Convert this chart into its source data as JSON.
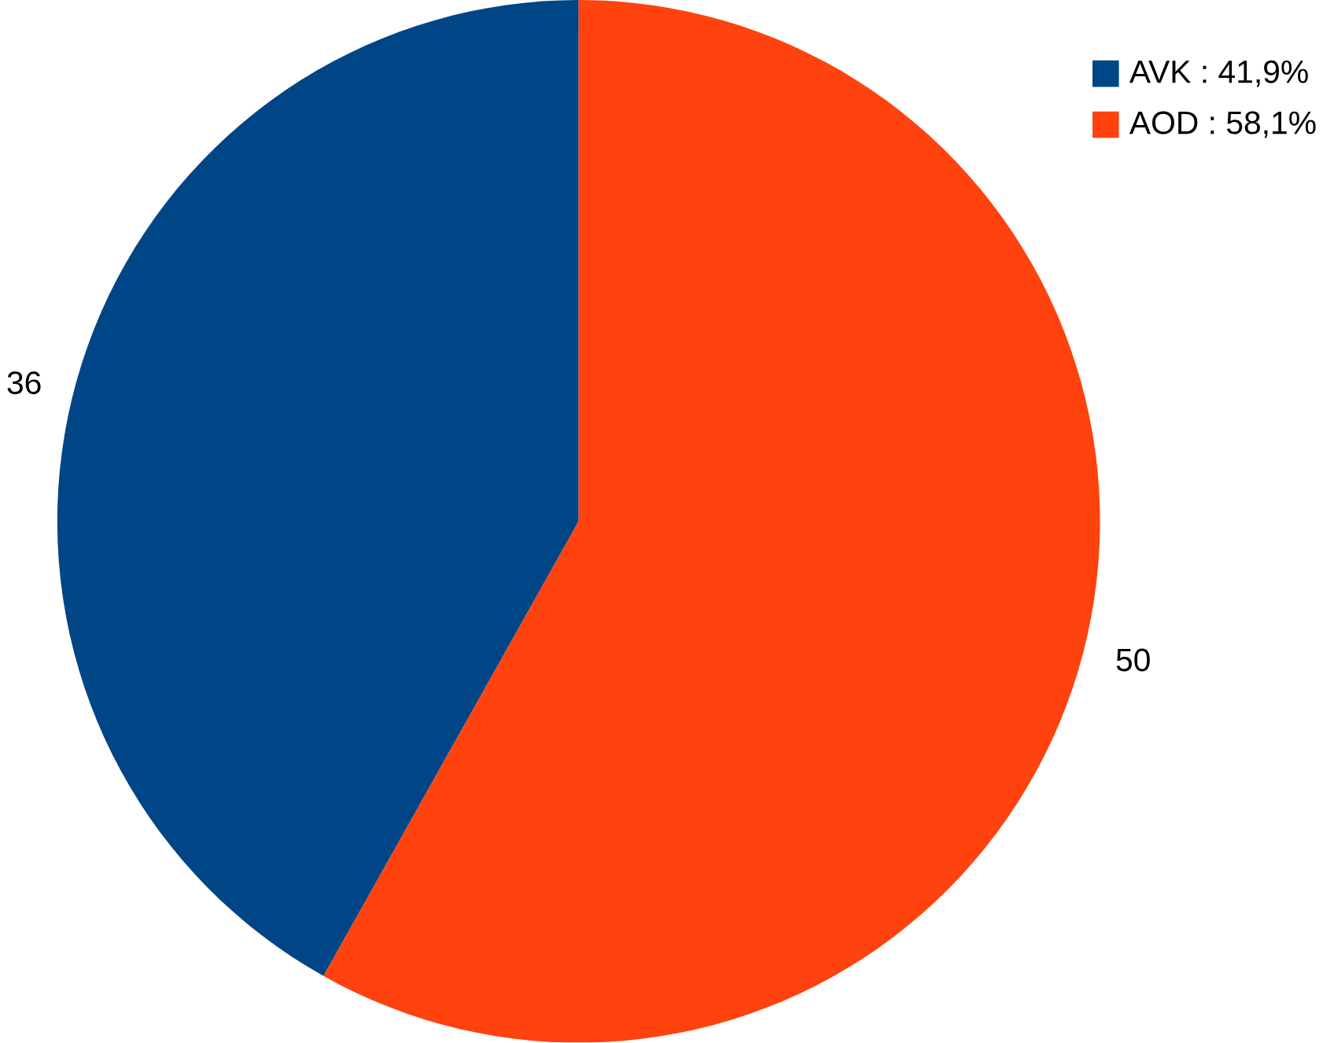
{
  "chart_data": {
    "type": "pie",
    "categories": [
      "AVK : 41,9%",
      "AOD : 58,1%"
    ],
    "values": [
      36,
      50
    ],
    "colors": [
      "#004586",
      "#ff420e"
    ],
    "data_labels": true,
    "legend": "top right"
  }
}
